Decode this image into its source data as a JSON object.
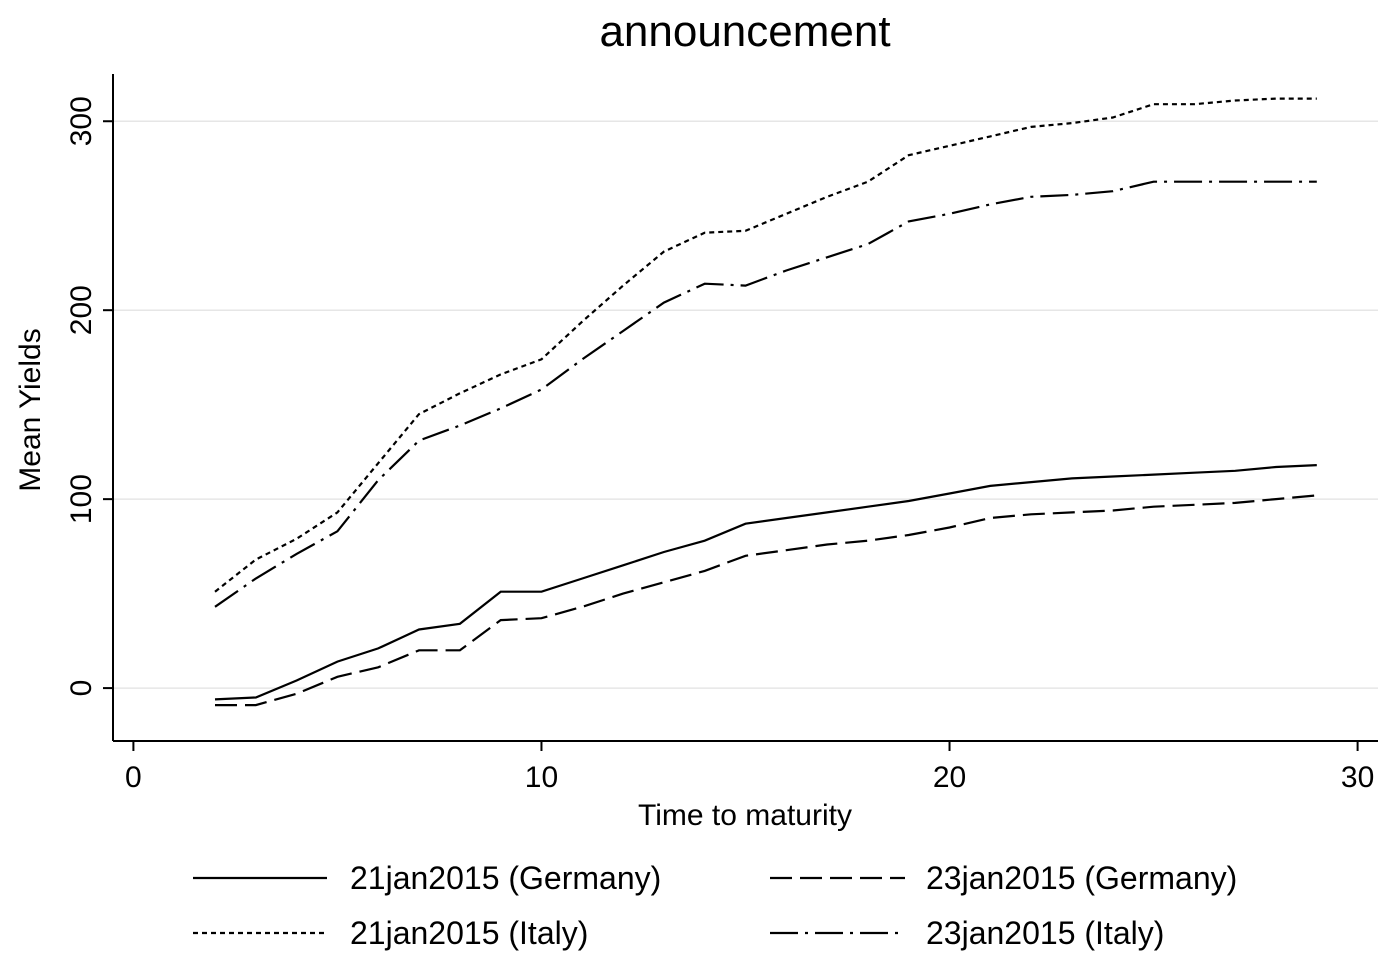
{
  "chart_data": {
    "type": "line",
    "title": "announcement",
    "xlabel": "Time to maturity",
    "ylabel": "Mean Yields",
    "xlim": [
      -0.5,
      30.5
    ],
    "ylim": [
      -28,
      325
    ],
    "xticks": [
      0,
      10,
      20,
      30
    ],
    "yticks": [
      0,
      100,
      200,
      300
    ],
    "grid": "horizontal",
    "legend_position": "bottom",
    "series": [
      {
        "name": "21jan2015 (Germany)",
        "style": "solid",
        "x": [
          2,
          3,
          4,
          5,
          6,
          7,
          8,
          9,
          10,
          11,
          12,
          13,
          14,
          15,
          16,
          17,
          18,
          19,
          20,
          21,
          22,
          23,
          24,
          25,
          26,
          27,
          28,
          29
        ],
        "y": [
          -6,
          -5,
          4,
          14,
          21,
          31,
          34,
          51,
          51,
          58,
          65,
          72,
          78,
          87,
          90,
          93,
          96,
          99,
          103,
          107,
          109,
          111,
          112,
          113,
          114,
          115,
          117,
          118
        ]
      },
      {
        "name": "23jan2015 (Germany)",
        "style": "dashed",
        "x": [
          2,
          3,
          4,
          5,
          6,
          7,
          8,
          9,
          10,
          11,
          12,
          13,
          14,
          15,
          16,
          17,
          18,
          19,
          20,
          21,
          22,
          23,
          24,
          25,
          26,
          27,
          28,
          29
        ],
        "y": [
          -9,
          -9,
          -3,
          6,
          11,
          20,
          20,
          36,
          37,
          43,
          50,
          56,
          62,
          70,
          73,
          76,
          78,
          81,
          85,
          90,
          92,
          93,
          94,
          96,
          97,
          98,
          100,
          102
        ]
      },
      {
        "name": "21jan2015 (Italy)",
        "style": "dotted",
        "x": [
          2,
          3,
          4,
          5,
          6,
          7,
          8,
          9,
          10,
          11,
          12,
          13,
          14,
          15,
          16,
          17,
          18,
          19,
          20,
          21,
          22,
          23,
          24,
          25,
          26,
          27,
          28,
          29
        ],
        "y": [
          51,
          68,
          79,
          93,
          119,
          145,
          156,
          166,
          174,
          194,
          213,
          231,
          241,
          242,
          251,
          260,
          268,
          282,
          287,
          292,
          297,
          299,
          302,
          309,
          309,
          311,
          312,
          312
        ]
      },
      {
        "name": "23jan2015 (Italy)",
        "style": "dashdot",
        "x": [
          2,
          3,
          4,
          5,
          6,
          7,
          8,
          9,
          10,
          11,
          12,
          13,
          14,
          15,
          16,
          17,
          18,
          19,
          20,
          21,
          22,
          23,
          24,
          25,
          26,
          27,
          28,
          29
        ],
        "y": [
          43,
          58,
          71,
          83,
          110,
          131,
          139,
          148,
          158,
          174,
          189,
          204,
          214,
          213,
          221,
          228,
          235,
          247,
          251,
          256,
          260,
          261,
          263,
          268,
          268,
          268,
          268,
          268
        ]
      }
    ]
  }
}
